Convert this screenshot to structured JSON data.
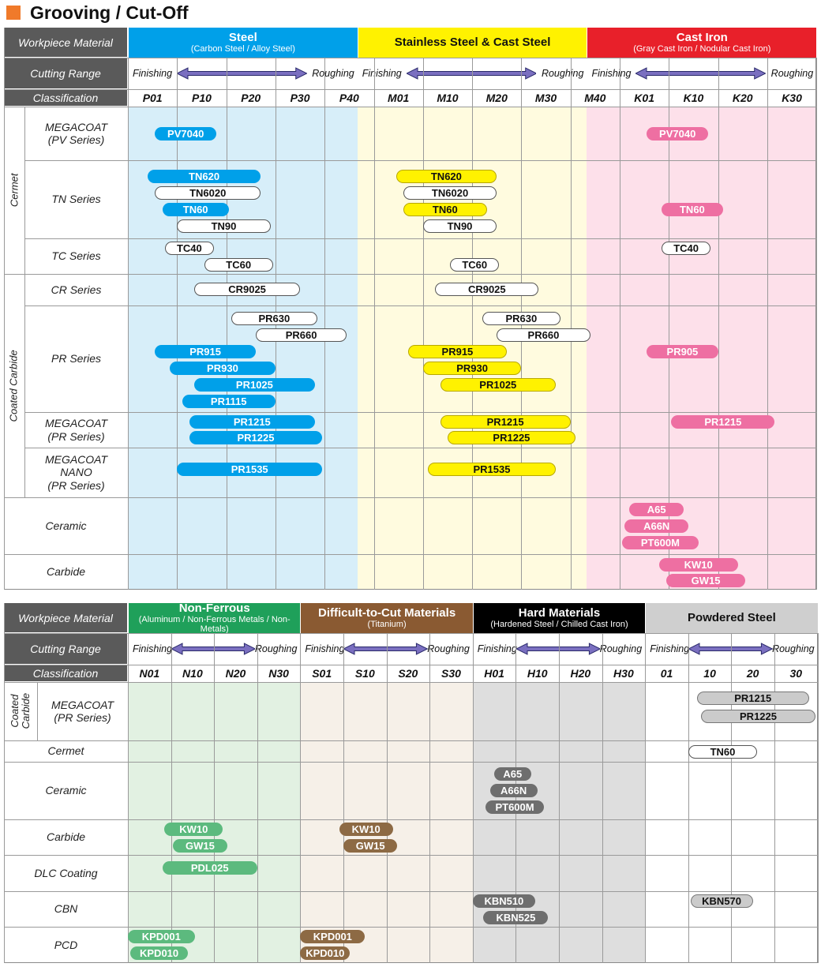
{
  "title": "Grooving / Cut-Off",
  "colors": {
    "accent": "#f07a2a",
    "header_dark": "#5a5a5a",
    "steel": "#00a0e9",
    "steel_bg": "#d7eef9",
    "stainless": "#fff200",
    "stainless_bg": "#fffbdf",
    "castiron": "#e8202a",
    "castiron_bg": "#fde0ea",
    "nonferrous": "#1fa05a",
    "nonferrous_bg": "#e2f1e2",
    "difficult": "#8a5a32",
    "difficult_bg": "#f6f0e8",
    "hard": "#000000",
    "hard_bg": "#dedede",
    "powdered": "#cfcfcf",
    "powdered_bg": "#ffffff"
  },
  "labels": {
    "workpiece_material": "Workpiece Material",
    "cutting_range": "Cutting Range",
    "classification": "Classification",
    "finishing": "Finishing",
    "roughing": "Roughing"
  },
  "table1": {
    "materials": [
      {
        "name": "Steel",
        "sub": "(Carbon Steel / Alloy Steel)"
      },
      {
        "name": "Stainless Steel & Cast Steel",
        "sub": ""
      },
      {
        "name": "Cast Iron",
        "sub": "(Gray Cast Iron / Nodular Cast Iron)"
      }
    ],
    "classes": [
      "P01",
      "P10",
      "P20",
      "P30",
      "P40",
      "M01",
      "M10",
      "M20",
      "M30",
      "M40",
      "K01",
      "K10",
      "K20",
      "K30"
    ],
    "groups": [
      "Cermet",
      "Coated Carbide"
    ],
    "rows": [
      {
        "label": [
          "MEGACOAT",
          "(PV Series)"
        ]
      },
      {
        "label": [
          "TN Series"
        ]
      },
      {
        "label": [
          "TC Series"
        ]
      },
      {
        "label": [
          "CR Series"
        ]
      },
      {
        "label": [
          "PR Series"
        ]
      },
      {
        "label": [
          "MEGACOAT",
          "(PR Series)"
        ]
      },
      {
        "label": [
          "MEGACOAT",
          "NANO",
          "(PR Series)"
        ]
      },
      {
        "label": [
          "Ceramic"
        ]
      },
      {
        "label": [
          "Carbide"
        ]
      }
    ],
    "grades": [
      {
        "name": "PV7040",
        "style": "steel",
        "start": 0.55,
        "end": 1.8,
        "row": 0,
        "line": 0
      },
      {
        "name": "PV7040",
        "style": "castiron",
        "start": 10.55,
        "end": 11.8,
        "row": 0,
        "line": 0
      },
      {
        "name": "TN620",
        "style": "steel",
        "start": 0.4,
        "end": 2.7,
        "row": 1,
        "line": 0
      },
      {
        "name": "TN6020",
        "style": "white",
        "start": 0.55,
        "end": 2.7,
        "row": 1,
        "line": 1
      },
      {
        "name": "TN60",
        "style": "steel",
        "start": 0.7,
        "end": 2.05,
        "row": 1,
        "line": 2
      },
      {
        "name": "TN90",
        "style": "white",
        "start": 1.0,
        "end": 2.9,
        "row": 1,
        "line": 3
      },
      {
        "name": "TN620",
        "style": "stainless",
        "start": 5.45,
        "end": 7.5,
        "row": 1,
        "line": 0
      },
      {
        "name": "TN6020",
        "style": "white",
        "start": 5.6,
        "end": 7.5,
        "row": 1,
        "line": 1
      },
      {
        "name": "TN60",
        "style": "stainless",
        "start": 5.6,
        "end": 7.3,
        "row": 1,
        "line": 2
      },
      {
        "name": "TN90",
        "style": "white",
        "start": 6.0,
        "end": 7.5,
        "row": 1,
        "line": 3
      },
      {
        "name": "TN60",
        "style": "castiron",
        "start": 10.85,
        "end": 12.1,
        "row": 1,
        "line": 2
      },
      {
        "name": "TC40",
        "style": "white",
        "start": 0.75,
        "end": 1.75,
        "row": 2,
        "line": 0
      },
      {
        "name": "TC60",
        "style": "white",
        "start": 1.55,
        "end": 2.95,
        "row": 2,
        "line": 1
      },
      {
        "name": "TC60",
        "style": "white",
        "start": 6.55,
        "end": 7.55,
        "row": 2,
        "line": 1
      },
      {
        "name": "TC40",
        "style": "white",
        "start": 10.85,
        "end": 11.85,
        "row": 2,
        "line": 0
      },
      {
        "name": "CR9025",
        "style": "white",
        "start": 1.35,
        "end": 3.5,
        "row": 3,
        "line": 0
      },
      {
        "name": "CR9025",
        "style": "white",
        "start": 6.25,
        "end": 8.35,
        "row": 3,
        "line": 0
      },
      {
        "name": "PR630",
        "style": "white",
        "start": 2.1,
        "end": 3.85,
        "row": 4,
        "line": 0
      },
      {
        "name": "PR660",
        "style": "white",
        "start": 2.6,
        "end": 4.45,
        "row": 4,
        "line": 1
      },
      {
        "name": "PR915",
        "style": "steel",
        "start": 0.55,
        "end": 2.6,
        "row": 4,
        "line": 2
      },
      {
        "name": "PR930",
        "style": "steel",
        "start": 0.85,
        "end": 3.0,
        "row": 4,
        "line": 3
      },
      {
        "name": "PR1025",
        "style": "steel",
        "start": 1.35,
        "end": 3.8,
        "row": 4,
        "line": 4
      },
      {
        "name": "PR1115",
        "style": "steel",
        "start": 1.1,
        "end": 3.0,
        "row": 4,
        "line": 5
      },
      {
        "name": "PR630",
        "style": "white",
        "start": 7.2,
        "end": 8.8,
        "row": 4,
        "line": 0
      },
      {
        "name": "PR660",
        "style": "white",
        "start": 7.5,
        "end": 9.4,
        "row": 4,
        "line": 1
      },
      {
        "name": "PR915",
        "style": "stainless",
        "start": 5.7,
        "end": 7.7,
        "row": 4,
        "line": 2
      },
      {
        "name": "PR930",
        "style": "stainless",
        "start": 6.0,
        "end": 8.0,
        "row": 4,
        "line": 3
      },
      {
        "name": "PR1025",
        "style": "stainless",
        "start": 6.35,
        "end": 8.7,
        "row": 4,
        "line": 4
      },
      {
        "name": "PR905",
        "style": "castiron",
        "start": 10.55,
        "end": 12.0,
        "row": 4,
        "line": 2
      },
      {
        "name": "PR1215",
        "style": "steel",
        "start": 1.25,
        "end": 3.8,
        "row": 5,
        "line": 0
      },
      {
        "name": "PR1225",
        "style": "steel",
        "start": 1.25,
        "end": 3.95,
        "row": 5,
        "line": 1
      },
      {
        "name": "PR1215",
        "style": "stainless",
        "start": 6.35,
        "end": 9.0,
        "row": 5,
        "line": 0
      },
      {
        "name": "PR1225",
        "style": "stainless",
        "start": 6.5,
        "end": 9.1,
        "row": 5,
        "line": 1
      },
      {
        "name": "PR1215",
        "style": "castiron",
        "start": 11.05,
        "end": 13.15,
        "row": 5,
        "line": 0
      },
      {
        "name": "PR1535",
        "style": "steel",
        "start": 1.0,
        "end": 3.95,
        "row": 6,
        "line": 0
      },
      {
        "name": "PR1535",
        "style": "stainless",
        "start": 6.1,
        "end": 8.7,
        "row": 6,
        "line": 0
      },
      {
        "name": "A65",
        "style": "castiron",
        "start": 10.2,
        "end": 11.3,
        "row": 7,
        "line": 0
      },
      {
        "name": "A66N",
        "style": "castiron",
        "start": 10.1,
        "end": 11.4,
        "row": 7,
        "line": 1
      },
      {
        "name": "PT600M",
        "style": "castiron",
        "start": 10.05,
        "end": 11.6,
        "row": 7,
        "line": 2
      },
      {
        "name": "KW10",
        "style": "castiron",
        "start": 10.8,
        "end": 12.4,
        "row": 8,
        "line": 0
      },
      {
        "name": "GW15",
        "style": "castiron",
        "start": 10.95,
        "end": 12.55,
        "row": 8,
        "line": 1
      }
    ]
  },
  "table2": {
    "materials": [
      {
        "name": "Non-Ferrous",
        "sub": "(Aluminum / Non-Ferrous Metals / Non-Metals)"
      },
      {
        "name": "Difficult-to-Cut Materials",
        "sub": "(Titanium)"
      },
      {
        "name": "Hard Materials",
        "sub": "(Hardened Steel / Chilled Cast Iron)"
      },
      {
        "name": "Powdered Steel",
        "sub": ""
      }
    ],
    "classes": [
      "N01",
      "N10",
      "N20",
      "N30",
      "S01",
      "S10",
      "S20",
      "S30",
      "H01",
      "H10",
      "H20",
      "H30",
      "01",
      "10",
      "20",
      "30"
    ],
    "group": [
      "Coated",
      "Carbide"
    ],
    "rows": [
      {
        "label": [
          "MEGACOAT",
          "(PR Series)"
        ]
      },
      {
        "label": [
          "Cermet"
        ]
      },
      {
        "label": [
          "Ceramic"
        ]
      },
      {
        "label": [
          "Carbide"
        ]
      },
      {
        "label": [
          "DLC Coating"
        ]
      },
      {
        "label": [
          "CBN"
        ]
      },
      {
        "label": [
          "PCD"
        ]
      }
    ],
    "grades": [
      {
        "name": "PR1215",
        "style": "lightgray",
        "start": 13.2,
        "end": 15.8,
        "row": 0,
        "line": 0
      },
      {
        "name": "PR1225",
        "style": "lightgray",
        "start": 13.3,
        "end": 15.95,
        "row": 0,
        "line": 1
      },
      {
        "name": "TN60",
        "style": "white",
        "start": 13.0,
        "end": 14.6,
        "row": 1,
        "line": 0
      },
      {
        "name": "A65",
        "style": "hard",
        "start": 8.5,
        "end": 9.35,
        "row": 2,
        "line": 0
      },
      {
        "name": "A66N",
        "style": "hard",
        "start": 8.4,
        "end": 9.5,
        "row": 2,
        "line": 1
      },
      {
        "name": "PT600M",
        "style": "hard",
        "start": 8.3,
        "end": 9.65,
        "row": 2,
        "line": 2
      },
      {
        "name": "KW10",
        "style": "nonferrous",
        "start": 0.85,
        "end": 2.2,
        "row": 3,
        "line": 0
      },
      {
        "name": "GW15",
        "style": "nonferrous",
        "start": 1.05,
        "end": 2.3,
        "row": 3,
        "line": 1
      },
      {
        "name": "KW10",
        "style": "difficult",
        "start": 4.9,
        "end": 6.15,
        "row": 3,
        "line": 0
      },
      {
        "name": "GW15",
        "style": "difficult",
        "start": 5.0,
        "end": 6.25,
        "row": 3,
        "line": 1
      },
      {
        "name": "PDL025",
        "style": "nonferrous",
        "start": 0.8,
        "end": 3.0,
        "row": 4,
        "line": 0
      },
      {
        "name": "KBN510",
        "style": "hard",
        "start": 8.0,
        "end": 9.45,
        "row": 5,
        "line": 0
      },
      {
        "name": "KBN525",
        "style": "hard",
        "start": 8.25,
        "end": 9.75,
        "row": 5,
        "line": 1
      },
      {
        "name": "KBN570",
        "style": "lightgray",
        "start": 13.05,
        "end": 14.5,
        "row": 5,
        "line": 0
      },
      {
        "name": "KPD001",
        "style": "nonferrous",
        "start": 0.0,
        "end": 1.55,
        "row": 6,
        "line": 0
      },
      {
        "name": "KPD010",
        "style": "nonferrous",
        "start": 0.05,
        "end": 1.4,
        "row": 6,
        "line": 1
      },
      {
        "name": "KPD001",
        "style": "difficult",
        "start": 4.0,
        "end": 5.5,
        "row": 6,
        "line": 0
      },
      {
        "name": "KPD010",
        "style": "difficult",
        "start": 4.0,
        "end": 5.15,
        "row": 6,
        "line": 1
      }
    ]
  }
}
